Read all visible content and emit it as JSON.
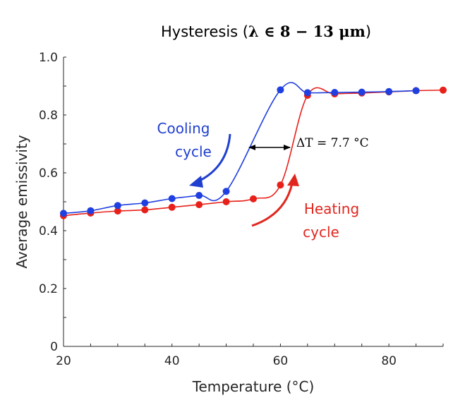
{
  "chart_data": {
    "type": "line",
    "title": "Hysteresis (λ ∈ 8 − 13 μm)",
    "title_parts": {
      "text": "Hysteresis (",
      "math": "λ ∈ 8 − 13 μm",
      "close": ")"
    },
    "xlabel": "Temperature (°C)",
    "ylabel": "Average emissivity",
    "xlim": [
      20,
      90
    ],
    "ylim": [
      0,
      1.0
    ],
    "xticks": [
      20,
      40,
      60,
      80
    ],
    "yticks": [
      0,
      0.2,
      0.4,
      0.6,
      0.8,
      1.0
    ],
    "xtick_labels": [
      "20",
      "40",
      "60",
      "80"
    ],
    "ytick_labels": [
      "0",
      "0.2",
      "0.4",
      "0.6",
      "0.8",
      "1.0"
    ],
    "grid": false,
    "series": [
      {
        "name": "Cooling cycle",
        "color": "#1f3fe0",
        "x": [
          20,
          25,
          30,
          35,
          40,
          45,
          50,
          60,
          65,
          70,
          75,
          80,
          85
        ],
        "y": [
          0.46,
          0.469,
          0.487,
          0.496,
          0.511,
          0.522,
          0.536,
          0.887,
          0.877,
          0.878,
          0.879,
          0.881,
          0.884
        ]
      },
      {
        "name": "Heating cycle",
        "color": "#e8201a",
        "x": [
          20,
          25,
          30,
          35,
          40,
          45,
          50,
          55,
          60,
          65,
          70,
          75,
          80,
          85,
          90
        ],
        "y": [
          0.452,
          0.461,
          0.468,
          0.472,
          0.481,
          0.49,
          0.5,
          0.51,
          0.558,
          0.868,
          0.873,
          0.876,
          0.88,
          0.884,
          0.886
        ]
      }
    ],
    "annotations": {
      "cooling_label": [
        "Cooling",
        "cycle"
      ],
      "heating_label": [
        "Heating",
        "cycle"
      ],
      "delta_t": "ΔT = 7.7 °C"
    }
  }
}
